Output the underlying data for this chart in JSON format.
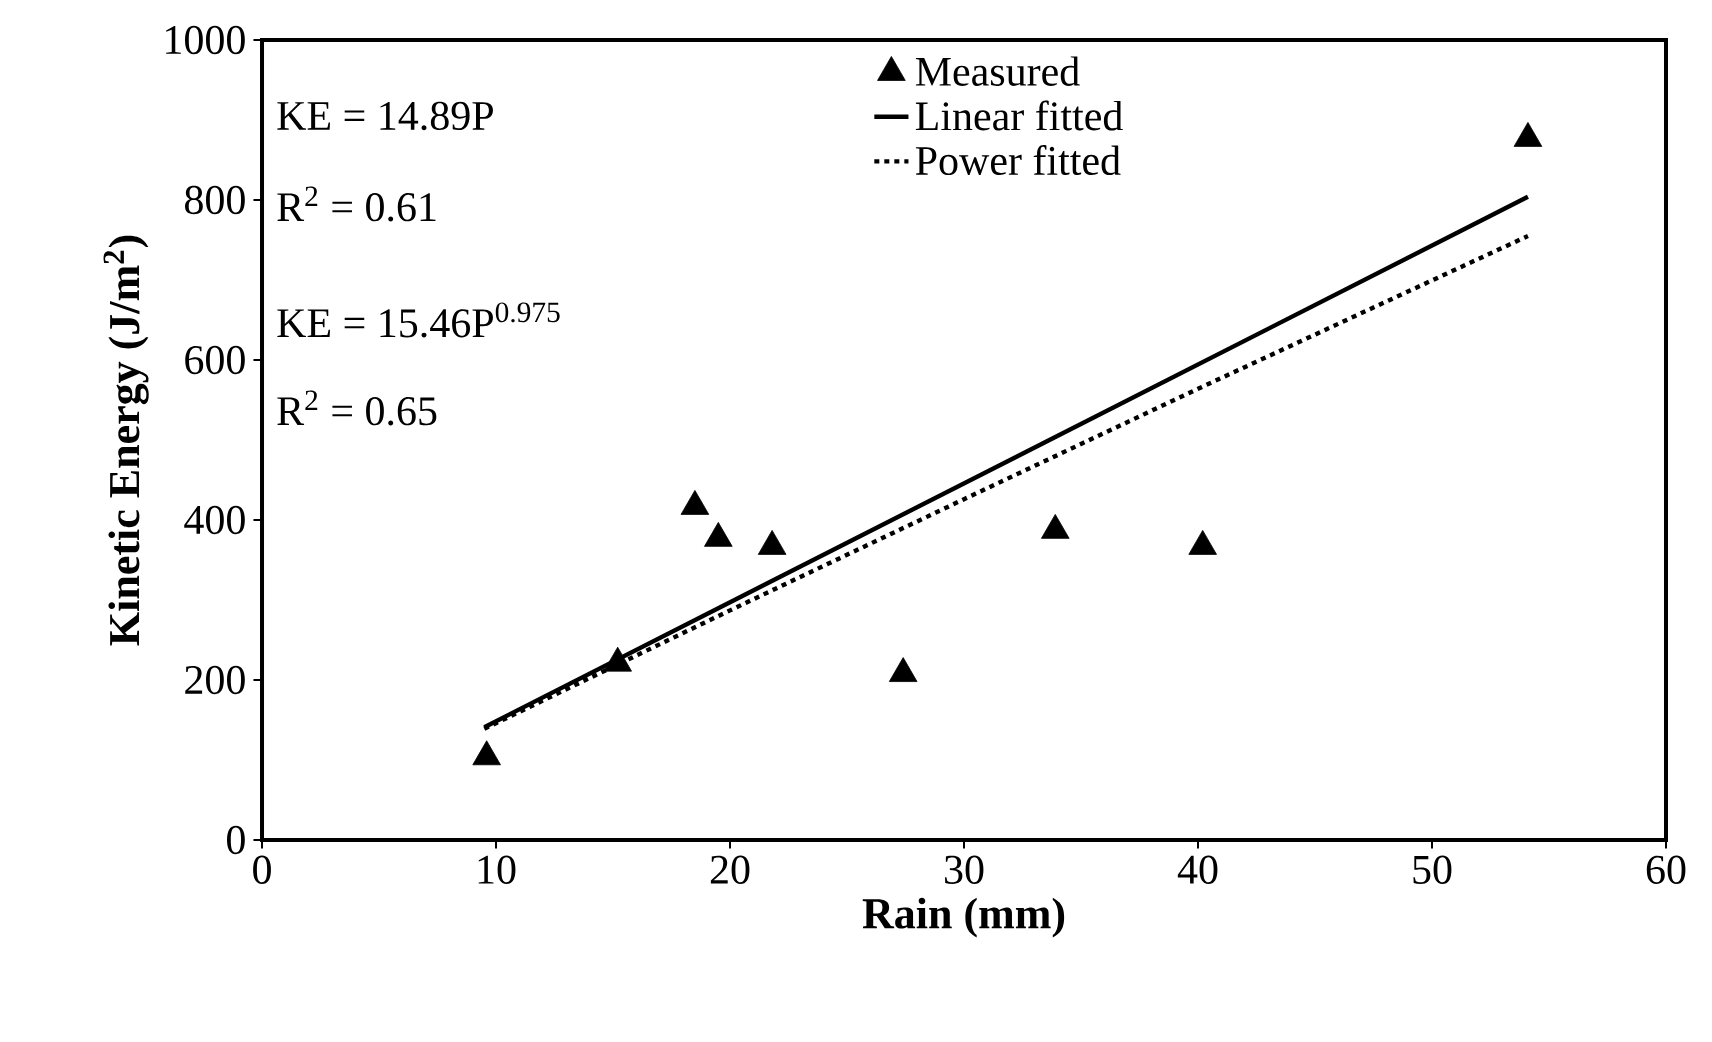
{
  "chart_data": {
    "type": "scatter",
    "xlabel": "Rain (mm)",
    "ylabel": "Kinetic Energy (J/m$^{2}$)",
    "xlim": [
      0,
      60
    ],
    "ylim": [
      0,
      1000
    ],
    "xticks": [
      0,
      10,
      20,
      30,
      40,
      50,
      60
    ],
    "yticks": [
      0,
      200,
      400,
      600,
      800,
      1000
    ],
    "grid": false,
    "legend": "top right",
    "annotations": [
      "KE = 14.89P",
      "R$^{2}$ = 0.61",
      "KE = 15.46P$^{0.975}$",
      "R$^{2}$ = 0.65"
    ],
    "series": [
      {
        "name": "Measured",
        "marker": "triangle",
        "color": "#000000",
        "x": [
          9.6,
          15.2,
          18.5,
          19.5,
          21.8,
          27.4,
          33.9,
          40.2,
          54.1
        ],
        "values": [
          104,
          221,
          417,
          377,
          367,
          208,
          387,
          367,
          877
        ]
      },
      {
        "name": "Linear fitted",
        "type": "line",
        "marker": "none",
        "line_style": "solid",
        "color": "#000000",
        "x": [
          9.5,
          54.1
        ],
        "values": [
          141,
          804
        ]
      },
      {
        "name": "Power fitted",
        "type": "line",
        "marker": "none",
        "line_style": "dotted",
        "color": "#000000",
        "x": [
          9.5,
          20,
          30,
          40,
          54.1
        ],
        "values": [
          139,
          287,
          426,
          564,
          755
        ]
      }
    ]
  }
}
